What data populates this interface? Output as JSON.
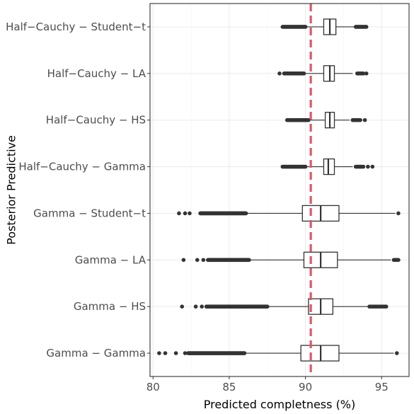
{
  "chart_data": {
    "type": "boxplot",
    "orientation": "horizontal",
    "xlabel": "Predicted completness (%)",
    "ylabel": "Posterior Predictive",
    "xlim": [
      79.8,
      96.8
    ],
    "xticks": [
      80,
      85,
      90,
      95
    ],
    "grid": true,
    "reference_line": {
      "x": 90.35,
      "color": "#d9586e",
      "style": "dashed"
    },
    "categories": [
      "Half−Cauchy − Student−t",
      "Half−Cauchy − LA",
      "Half−Cauchy − HS",
      "Half−Cauchy − Gamma",
      "Gamma − Student−t",
      "Gamma − LA",
      "Gamma − HS",
      "Gamma − Gamma"
    ],
    "boxes": [
      {
        "whisker_low": 90.1,
        "q1": 91.2,
        "median": 91.6,
        "q3": 92.0,
        "whisker_high": 93.2,
        "outliers": [
          [
            88.5,
            90.0,
            30
          ],
          [
            93.3,
            94.0,
            14
          ]
        ]
      },
      {
        "whisker_low": 89.9,
        "q1": 91.2,
        "median": 91.6,
        "q3": 91.9,
        "whisker_high": 93.1,
        "outliers": [
          [
            88.3
          ],
          [
            88.6,
            89.9,
            20
          ],
          [
            93.4,
            93.8,
            6
          ],
          [
            94.0
          ]
        ]
      },
      {
        "whisker_low": 90.2,
        "q1": 91.3,
        "median": 91.6,
        "q3": 91.9,
        "whisker_high": 92.9,
        "outliers": [
          [
            88.8,
            90.2,
            20
          ],
          [
            93.1,
            93.6,
            7
          ],
          [
            93.9
          ]
        ]
      },
      {
        "whisker_low": 90.0,
        "q1": 91.2,
        "median": 91.5,
        "q3": 91.9,
        "whisker_high": 93.1,
        "outliers": [
          [
            88.5,
            90.0,
            24
          ],
          [
            93.3,
            93.8,
            7
          ],
          [
            94.1
          ],
          [
            94.4
          ]
        ]
      },
      {
        "whisker_low": 86.2,
        "q1": 89.8,
        "median": 91.0,
        "q3": 92.2,
        "whisker_high": 95.9,
        "outliers": [
          [
            81.7
          ],
          [
            82.1
          ],
          [
            82.4
          ],
          [
            83.1,
            86.1,
            80
          ],
          [
            96.1
          ]
        ]
      },
      {
        "whisker_low": 86.4,
        "q1": 89.9,
        "median": 91.0,
        "q3": 92.1,
        "whisker_high": 95.6,
        "outliers": [
          [
            82.0
          ],
          [
            82.9
          ],
          [
            83.3
          ],
          [
            83.6,
            86.3,
            70
          ],
          [
            95.8,
            96.1,
            5
          ]
        ]
      },
      {
        "whisker_low": 87.6,
        "q1": 90.2,
        "median": 91.0,
        "q3": 91.8,
        "whisker_high": 94.1,
        "outliers": [
          [
            81.9
          ],
          [
            82.8
          ],
          [
            83.2
          ],
          [
            83.5,
            87.5,
            90
          ],
          [
            94.2,
            95.3,
            12
          ]
        ]
      },
      {
        "whisker_low": 86.0,
        "q1": 89.7,
        "median": 91.0,
        "q3": 92.2,
        "whisker_high": 95.8,
        "outliers": [
          [
            80.4
          ],
          [
            80.8
          ],
          [
            81.5
          ],
          [
            82.1
          ],
          [
            82.3,
            86.0,
            80
          ],
          [
            96.0
          ]
        ]
      }
    ]
  }
}
